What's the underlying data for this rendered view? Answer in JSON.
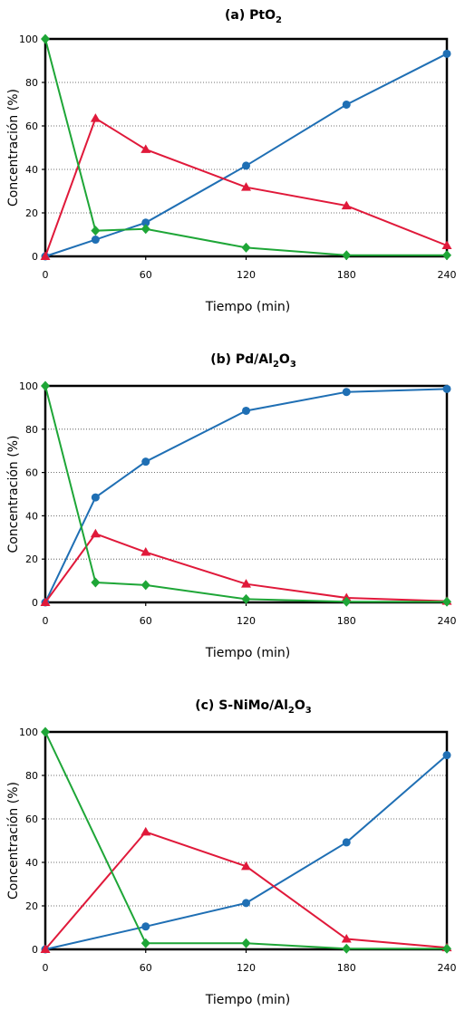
{
  "chart_data": [
    {
      "type": "line",
      "title": {
        "prefix": "(a) PtO",
        "parts": [
          {
            "t": "2",
            "sub": true
          }
        ]
      },
      "xlabel": "Tiempo (min)",
      "ylabel": "Concentración (%)",
      "x": [
        0,
        30,
        60,
        120,
        180,
        240
      ],
      "xticks": [
        0,
        60,
        120,
        180,
        240
      ],
      "xlim": [
        0,
        240
      ],
      "ylim": [
        0,
        100
      ],
      "yticks": [
        0,
        20,
        40,
        60,
        80,
        100
      ],
      "grid": "horizontal dotted",
      "series": [
        {
          "marker": "circle",
          "color": "#1f6fb4",
          "values": [
            0,
            7.7,
            15.5,
            41.7,
            69.8,
            93.2
          ]
        },
        {
          "marker": "triangle",
          "color": "#e0193a",
          "values": [
            0,
            63.5,
            49.2,
            31.8,
            23.3,
            5
          ]
        },
        {
          "marker": "diamond",
          "color": "#1ea637",
          "values": [
            100,
            11.8,
            12.6,
            4,
            0.5,
            0.5
          ]
        }
      ]
    },
    {
      "type": "line",
      "title": {
        "prefix": "(b) Pd/Al",
        "parts": [
          {
            "t": "2",
            "sub": true
          },
          {
            "t": "O",
            "sub": false
          },
          {
            "t": "3",
            "sub": true
          }
        ]
      },
      "xlabel": "Tiempo (min)",
      "ylabel": "Concentración (%)",
      "x": [
        0,
        30,
        60,
        120,
        180,
        240
      ],
      "xticks": [
        0,
        60,
        120,
        180,
        240
      ],
      "xlim": [
        0,
        240
      ],
      "ylim": [
        0,
        100
      ],
      "yticks": [
        0,
        20,
        40,
        60,
        80,
        100
      ],
      "grid": "horizontal dotted",
      "series": [
        {
          "marker": "circle",
          "color": "#1f6fb4",
          "values": [
            0,
            48.5,
            65,
            88.5,
            97.2,
            98.6
          ]
        },
        {
          "marker": "triangle",
          "color": "#e0193a",
          "values": [
            0,
            31.7,
            23.2,
            8.5,
            2.1,
            0.6
          ]
        },
        {
          "marker": "diamond",
          "color": "#1ea637",
          "values": [
            100,
            9.2,
            8,
            1.5,
            0.3,
            0.3
          ]
        }
      ]
    },
    {
      "type": "line",
      "title": {
        "prefix": "(c) S-NiMo/Al",
        "parts": [
          {
            "t": "2",
            "sub": true
          },
          {
            "t": "O",
            "sub": false
          },
          {
            "t": "3",
            "sub": true
          }
        ]
      },
      "xlabel": "Tiempo (min)",
      "ylabel": "Concentración (%)",
      "x": [
        0,
        60,
        120,
        180,
        240
      ],
      "xticks": [
        0,
        60,
        120,
        180,
        240
      ],
      "xlim": [
        0,
        240
      ],
      "ylim": [
        0,
        100
      ],
      "yticks": [
        0,
        20,
        40,
        60,
        80,
        100
      ],
      "grid": "horizontal dotted",
      "series": [
        {
          "marker": "circle",
          "color": "#1f6fb4",
          "values": [
            0,
            10.5,
            21.3,
            49.2,
            89.3
          ]
        },
        {
          "marker": "triangle",
          "color": "#e0193a",
          "values": [
            0,
            54,
            38.2,
            4.8,
            0.8
          ]
        },
        {
          "marker": "diamond",
          "color": "#1ea637",
          "values": [
            100,
            2.8,
            2.8,
            0.3,
            0.3
          ]
        }
      ]
    }
  ]
}
